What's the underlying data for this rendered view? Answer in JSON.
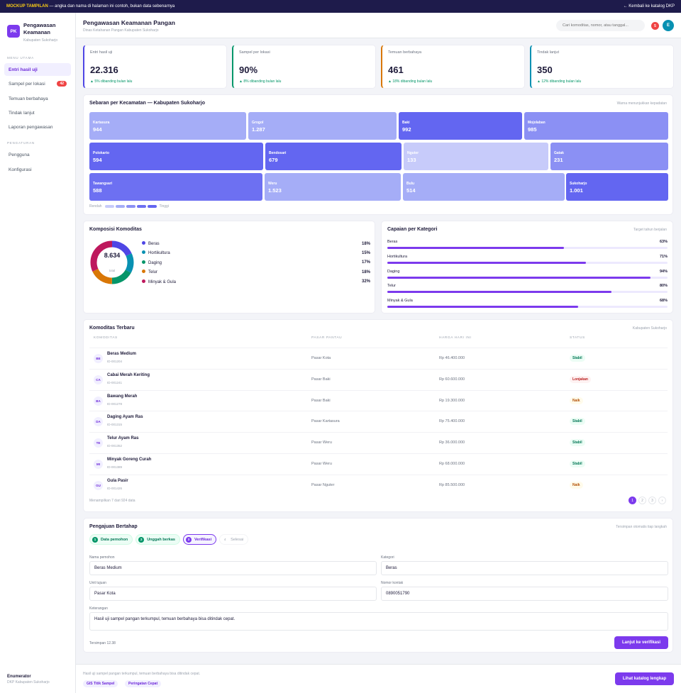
{
  "banner": {
    "tag": "MOCKUP TAMPILAN",
    "text": " — angka dan nama di halaman ini contoh, bukan data sebenarnya",
    "back": "← Kembali ke katalog DKP"
  },
  "brand": {
    "logo": "PK",
    "title": "Pengawasan Keamanan",
    "subtitle": "Kabupaten Sukoharjo"
  },
  "nav": {
    "section_main": "MENU UTAMA",
    "items": [
      {
        "label": "Entri hasil uji",
        "badge": ""
      },
      {
        "label": "Sampel per lokasi",
        "badge": "42"
      },
      {
        "label": "Temuan berbahaya",
        "badge": ""
      },
      {
        "label": "Tindak lanjut",
        "badge": ""
      },
      {
        "label": "Laporan pengawasan",
        "badge": ""
      }
    ],
    "section_settings": "PENGATURAN",
    "settings": [
      {
        "label": "Pengguna"
      },
      {
        "label": "Konfigurasi"
      }
    ]
  },
  "user": {
    "role": "Enumerator",
    "org": "DKP Kabupaten Sukoharjo"
  },
  "header": {
    "title": "Pengawasan Keamanan Pangan",
    "subtitle": "Dinas Ketahanan Pangan Kabupaten Sukoharjo",
    "search_placeholder": "Cari komoditas, nomor, atau tanggal...",
    "notif": "5",
    "avatar": "E"
  },
  "kpis": [
    {
      "label": "Entri hasil uji",
      "value": "22.316",
      "delta": "▲ 5% dibanding bulan lalu",
      "color": "#4f46e5"
    },
    {
      "label": "Sampel per lokasi",
      "value": "90%",
      "delta": "▲ 8% dibanding bulan lalu",
      "color": "#059669"
    },
    {
      "label": "Temuan berbahaya",
      "value": "461",
      "delta": "▲ 18% dibanding bulan lalu",
      "color": "#d97706"
    },
    {
      "label": "Tindak lanjut",
      "value": "350",
      "delta": "▲ 12% dibanding bulan lalu",
      "color": "#0891b2"
    }
  ],
  "treemap": {
    "title": "Sebaran per Kecamatan — Kabupaten Sukoharjo",
    "note": "Warna menunjukkan kepadatan",
    "low": "Rendah",
    "high": "Tinggi",
    "tiles": [
      {
        "name": "Kartasura",
        "value": "944",
        "color": "#a5adf7"
      },
      {
        "name": "Grogol",
        "value": "1.287",
        "color": "#a5adf7"
      },
      {
        "name": "Baki",
        "value": "992",
        "color": "#6366f1"
      },
      {
        "name": "Mojolaban",
        "value": "985",
        "color": "#8b90f4"
      },
      {
        "name": "Polokarto",
        "value": "594",
        "color": "#6366f1"
      },
      {
        "name": "Bendosari",
        "value": "679",
        "color": "#6366f1"
      },
      {
        "name": "Nguter",
        "value": "133",
        "color": "#c7cbfa"
      },
      {
        "name": "Gatak",
        "value": "231",
        "color": "#8b90f4"
      },
      {
        "name": "Tawangsari",
        "value": "588",
        "color": "#6d70f2"
      },
      {
        "name": "Weru",
        "value": "1.523",
        "color": "#a5adf7"
      },
      {
        "name": "Bulu",
        "value": "514",
        "color": "#a5adf7"
      },
      {
        "name": "Sukoharjo",
        "value": "1.001",
        "color": "#6366f1"
      }
    ]
  },
  "composition": {
    "title": "Komposisi Komoditas",
    "total": "8.634",
    "total_label": "total",
    "items": [
      {
        "name": "Beras",
        "pct": "18%",
        "value": 18,
        "color": "#4f46e5"
      },
      {
        "name": "Hortikultura",
        "pct": "15%",
        "value": 15,
        "color": "#0891b2"
      },
      {
        "name": "Daging",
        "pct": "17%",
        "value": 17,
        "color": "#059669"
      },
      {
        "name": "Telur",
        "pct": "18%",
        "value": 18,
        "color": "#d97706"
      },
      {
        "name": "Minyak & Gula",
        "pct": "32%",
        "value": 32,
        "color": "#be185d"
      }
    ]
  },
  "achievement": {
    "title": "Capaian per Kategori",
    "note": "Target tahun berjalan",
    "items": [
      {
        "name": "Beras",
        "pct": "63%",
        "value": 63
      },
      {
        "name": "Hortikultura",
        "pct": "71%",
        "value": 71
      },
      {
        "name": "Daging",
        "pct": "94%",
        "value": 94
      },
      {
        "name": "Telur",
        "pct": "80%",
        "value": 80
      },
      {
        "name": "Minyak & Gula",
        "pct": "68%",
        "value": 68
      }
    ]
  },
  "table": {
    "title": "Komoditas Terbaru",
    "note": "Kabupaten Sukoharjo",
    "headers": [
      "KOMODITAS",
      "PASAR PANTAU",
      "HARGA HARI INI",
      "STATUS"
    ],
    "rows": [
      {
        "abbr": "BE",
        "name": "Beras Medium",
        "id": "ID-001204",
        "market": "Pasar Kota",
        "price": "Rp 46.400.000",
        "status": "Stabil",
        "cls": "stabil"
      },
      {
        "abbr": "CA",
        "name": "Cabai Merah Keriting",
        "id": "ID-001241",
        "market": "Pasar Baki",
        "price": "Rp 60.600.000",
        "status": "Lonjakan",
        "cls": "lonjakan"
      },
      {
        "abbr": "BA",
        "name": "Bawang Merah",
        "id": "ID-001278",
        "market": "Pasar Baki",
        "price": "Rp 19.300.000",
        "status": "Naik",
        "cls": "naik"
      },
      {
        "abbr": "DA",
        "name": "Daging Ayam Ras",
        "id": "ID-001315",
        "market": "Pasar Kartasura",
        "price": "Rp 75.400.000",
        "status": "Stabil",
        "cls": "stabil"
      },
      {
        "abbr": "TE",
        "name": "Telur Ayam Ras",
        "id": "ID-001352",
        "market": "Pasar Weru",
        "price": "Rp 36.000.000",
        "status": "Stabil",
        "cls": "stabil"
      },
      {
        "abbr": "MI",
        "name": "Minyak Goreng Curah",
        "id": "ID-001389",
        "market": "Pasar Weru",
        "price": "Rp 68.000.000",
        "status": "Stabil",
        "cls": "stabil"
      },
      {
        "abbr": "GU",
        "name": "Gula Pasir",
        "id": "ID-001426",
        "market": "Pasar Nguter",
        "price": "Rp 85.500.000",
        "status": "Naik",
        "cls": "naik"
      }
    ],
    "footer": "Menampilkan 7 dari 924 data",
    "pages": [
      "1",
      "2",
      "3",
      "›"
    ]
  },
  "form": {
    "title": "Pengajuan Bertahap",
    "note": "Tersimpan otomatis tiap langkah",
    "steps": [
      {
        "n": "1",
        "label": "Data pemohon",
        "state": "done"
      },
      {
        "n": "2",
        "label": "Unggah berkas",
        "state": "done"
      },
      {
        "n": "3",
        "label": "Verifikasi",
        "state": "cur"
      },
      {
        "n": "4",
        "label": "Selesai",
        "state": "todo"
      }
    ],
    "nama_label": "Nama pemohon",
    "nama": "Beras Medium",
    "kategori_label": "Kategori",
    "kategori": "Beras",
    "unit_label": "Unit tujuan",
    "unit": "Pasar Kota",
    "kontak_label": "Nomor kontak",
    "kontak": "0890051790",
    "ket_label": "Keterangan",
    "ket": "Hasil uji sampel pangan terkumpul, temuan berbahaya bisa ditindak cepat.",
    "saved": "Tersimpan 12.38",
    "submit": "Lanjut ke verifikasi"
  },
  "footer": {
    "text": "Hasil uji sampel pangan terkumpul, temuan berbahaya bisa ditindak cepat.",
    "chip1": "GIS Titik Sampel",
    "chip2": "Peringatan Cepat",
    "cta": "Lihat katalog lengkap"
  }
}
